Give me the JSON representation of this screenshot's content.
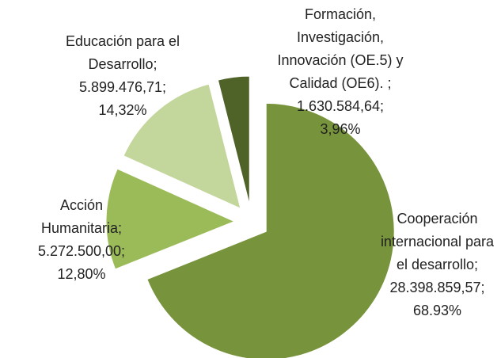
{
  "chart_data": {
    "type": "pie",
    "categories": [
      "Cooperación internacional para el desarrollo;",
      "Acción Humanitaria;",
      "Educación para el Desarrollo;",
      "Formación, Investigación, Innovación (OE.5) y Calidad (OE6). ;"
    ],
    "values": [
      28398859.57,
      5272500.0,
      5899476.71,
      1630584.64
    ],
    "value_labels": [
      "28.398.859,57;",
      "5.272.500,00;",
      "5.899.476,71;",
      "1.630.584,64;"
    ],
    "percents": [
      68.93,
      12.8,
      14.32,
      3.96
    ],
    "percent_labels": [
      "68.93%",
      "12,80%",
      "14,32%",
      "3,96%"
    ],
    "colors": [
      "#77933c",
      "#9bbb59",
      "#c3d69b",
      "#4f6228"
    ]
  }
}
